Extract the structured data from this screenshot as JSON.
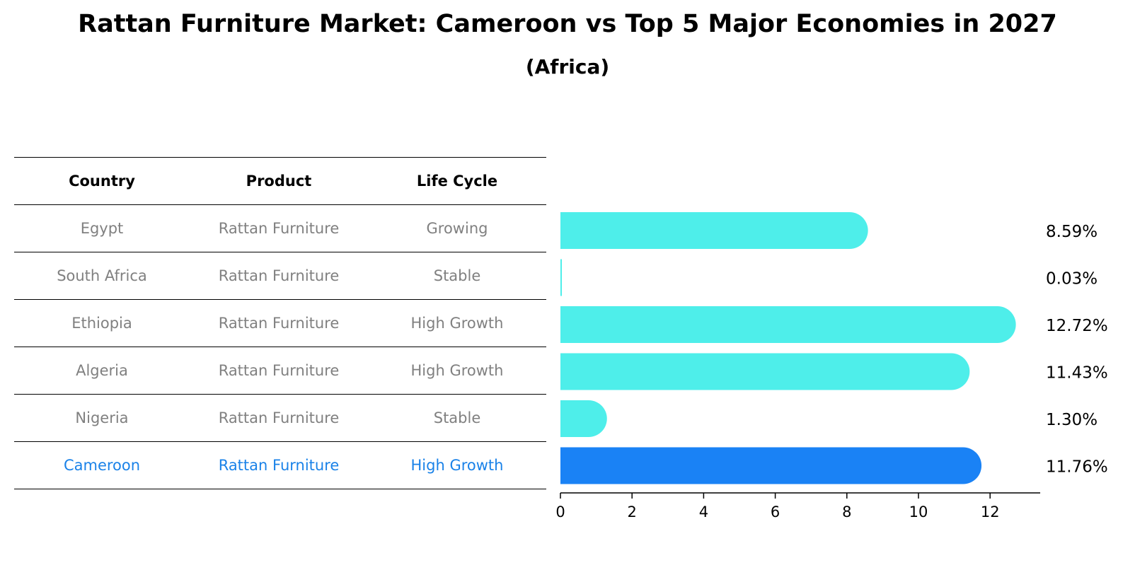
{
  "title": "Rattan Furniture Market: Cameroon vs Top 5 Major Economies in 2027",
  "subtitle": "(Africa)",
  "table": {
    "headers": [
      "Country",
      "Product",
      "Life Cycle"
    ],
    "rows": [
      {
        "country": "Egypt",
        "product": "Rattan Furniture",
        "life_cycle": "Growing"
      },
      {
        "country": "South Africa",
        "product": "Rattan Furniture",
        "life_cycle": "Stable"
      },
      {
        "country": "Ethiopia",
        "product": "Rattan Furniture",
        "life_cycle": "High Growth"
      },
      {
        "country": "Algeria",
        "product": "Rattan Furniture",
        "life_cycle": "High Growth"
      },
      {
        "country": "Nigeria",
        "product": "Rattan Furniture",
        "life_cycle": "Stable"
      },
      {
        "country": "Cameroon",
        "product": "Rattan Furniture",
        "life_cycle": "High Growth"
      }
    ]
  },
  "chart_data": {
    "type": "bar",
    "orientation": "horizontal",
    "categories": [
      "Egypt",
      "South Africa",
      "Ethiopia",
      "Algeria",
      "Nigeria",
      "Cameroon"
    ],
    "values": [
      8.59,
      0.03,
      12.72,
      11.43,
      1.3,
      11.76
    ],
    "value_labels": [
      "8.59%",
      "0.03%",
      "12.72%",
      "11.43%",
      "1.30%",
      "11.76%"
    ],
    "highlight": "Cameroon",
    "xticks": [
      0,
      2,
      4,
      6,
      8,
      10,
      12
    ],
    "xlim": [
      0,
      13.4
    ],
    "grid": false,
    "colors": {
      "default": "#4eeeea",
      "highlight": "#1a82f5",
      "highlight_text": "#1a82e8",
      "table_text": "#808080"
    }
  }
}
